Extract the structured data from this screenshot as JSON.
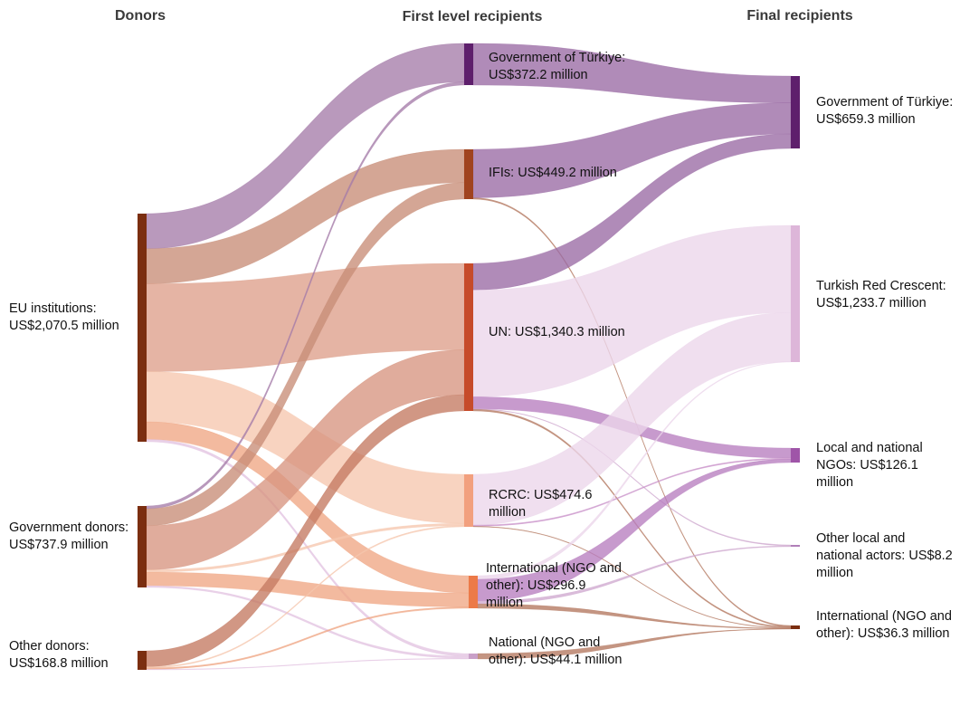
{
  "chart_data": {
    "type": "sankey",
    "unit": "US$ million",
    "columns": [
      "Donors",
      "First level recipients",
      "Final recipients"
    ],
    "nodes": [
      {
        "id": "eu",
        "column": 0,
        "label": [
          "EU institutions:",
          "US$2,070.5 million"
        ],
        "value": 2070.5,
        "color": "#7b2e10"
      },
      {
        "id": "gov",
        "column": 0,
        "label": [
          "Government donors:",
          "US$737.9 million"
        ],
        "value": 737.9,
        "color": "#7b2e10"
      },
      {
        "id": "other",
        "column": 0,
        "label": [
          "Other donors:",
          "US$168.8 million"
        ],
        "value": 168.8,
        "color": "#7b2e10"
      },
      {
        "id": "fl_tur",
        "column": 1,
        "label": [
          "Government of Türkiye:",
          "US$372.2 million"
        ],
        "value": 372.2,
        "color": "#5e1f6c"
      },
      {
        "id": "fl_ifi",
        "column": 1,
        "label": [
          "IFIs: US$449.2 million"
        ],
        "value": 449.2,
        "color": "#a0431f"
      },
      {
        "id": "fl_un",
        "column": 1,
        "label": [
          "UN: US$1,340.3 million"
        ],
        "value": 1340.3,
        "color": "#c64b2a"
      },
      {
        "id": "fl_rcrc",
        "column": 1,
        "label": [
          "RCRC: US$474.6",
          "million"
        ],
        "value": 474.6,
        "color": "#f2a07e"
      },
      {
        "id": "fl_intl",
        "column": 1,
        "label": [
          "International (NGO and",
          "other): US$296.9",
          "million"
        ],
        "value": 296.9,
        "color": "#ec7a48"
      },
      {
        "id": "fl_nat",
        "column": 1,
        "label": [
          "National (NGO and",
          "other): US$44.1 million"
        ],
        "value": 44.1,
        "color": "#c9a0c8"
      },
      {
        "id": "fin_tur",
        "column": 2,
        "label": [
          "Government of Türkiye:",
          "US$659.3 million"
        ],
        "value": 659.3,
        "color": "#5e1f6c"
      },
      {
        "id": "fin_trc",
        "column": 2,
        "label": [
          "Turkish Red Crescent:",
          "US$1,233.7 million"
        ],
        "value": 1233.7,
        "color": "#ddb6d9"
      },
      {
        "id": "fin_lngo",
        "column": 2,
        "label": [
          "Local and national",
          "NGOs: US$126.1",
          "million"
        ],
        "value": 126.1,
        "color": "#9f55a8"
      },
      {
        "id": "fin_olna",
        "column": 2,
        "label": [
          "Other local and",
          "national actors: US$8.2",
          "million"
        ],
        "value": 8.2,
        "color": "#b07fb8"
      },
      {
        "id": "fin_intl",
        "column": 2,
        "label": [
          "International (NGO and",
          "other): US$36.3 million"
        ],
        "value": 36.3,
        "color": "#7b2e10"
      }
    ],
    "links": [
      {
        "source": "eu",
        "target": "fl_tur",
        "value": 300,
        "color": "#a57ca9"
      },
      {
        "source": "eu",
        "target": "fl_ifi",
        "value": 300,
        "color": "#c88d77"
      },
      {
        "source": "eu",
        "target": "fl_un",
        "value": 750,
        "color": "#de9f8a"
      },
      {
        "source": "eu",
        "target": "fl_rcrc",
        "value": 430,
        "color": "#f6c7ae"
      },
      {
        "source": "eu",
        "target": "fl_intl",
        "value": 150,
        "color": "#f0a684"
      },
      {
        "source": "eu",
        "target": "fl_nat",
        "value": 20,
        "color": "#e3c4e2"
      },
      {
        "source": "gov",
        "target": "fl_tur",
        "value": 25,
        "color": "#a57ca9"
      },
      {
        "source": "gov",
        "target": "fl_ifi",
        "value": 150,
        "color": "#c88d77"
      },
      {
        "source": "gov",
        "target": "fl_un",
        "value": 390,
        "color": "#d79580"
      },
      {
        "source": "gov",
        "target": "fl_rcrc",
        "value": 20,
        "color": "#f6c7ae"
      },
      {
        "source": "gov",
        "target": "fl_intl",
        "value": 120,
        "color": "#f0a684"
      },
      {
        "source": "gov",
        "target": "fl_nat",
        "value": 15,
        "color": "#e3c4e2"
      },
      {
        "source": "other",
        "target": "fl_un",
        "value": 140,
        "color": "#c47a62"
      },
      {
        "source": "other",
        "target": "fl_rcrc",
        "value": 10,
        "color": "#f6c7ae"
      },
      {
        "source": "other",
        "target": "fl_intl",
        "value": 12,
        "color": "#f0a684"
      },
      {
        "source": "other",
        "target": "fl_nat",
        "value": 5,
        "color": "#e3c4e2"
      },
      {
        "source": "fl_tur",
        "target": "fin_tur",
        "value": 370,
        "color": "#9a6aa4"
      },
      {
        "source": "fl_ifi",
        "target": "fin_tur",
        "value": 430,
        "color": "#9a6aa4"
      },
      {
        "source": "fl_ifi",
        "target": "fin_intl",
        "value": 12,
        "color": "#b3775f"
      },
      {
        "source": "fl_un",
        "target": "fin_tur",
        "value": 200,
        "color": "#9a6aa4"
      },
      {
        "source": "fl_un",
        "target": "fin_trc",
        "value": 800,
        "color": "#ecd6eb"
      },
      {
        "source": "fl_un",
        "target": "fin_lngo",
        "value": 90,
        "color": "#b77dbf"
      },
      {
        "source": "fl_un",
        "target": "fin_olna",
        "value": 4,
        "color": "#d0a9d0"
      },
      {
        "source": "fl_un",
        "target": "fin_intl",
        "value": 12,
        "color": "#b3775f"
      },
      {
        "source": "fl_rcrc",
        "target": "fin_trc",
        "value": 450,
        "color": "#ecd6eb"
      },
      {
        "source": "fl_rcrc",
        "target": "fin_lngo",
        "value": 10,
        "color": "#c991c9"
      },
      {
        "source": "fl_rcrc",
        "target": "fin_intl",
        "value": 5,
        "color": "#b3775f"
      },
      {
        "source": "fl_intl",
        "target": "fin_trc",
        "value": 5,
        "color": "#ecd6eb"
      },
      {
        "source": "fl_intl",
        "target": "fin_lngo",
        "value": 30,
        "color": "#b77dbf"
      },
      {
        "source": "fl_intl",
        "target": "fin_olna",
        "value": 4,
        "color": "#d0a9d0"
      },
      {
        "source": "fl_intl",
        "target": "fin_intl",
        "value": 6,
        "color": "#b3775f"
      },
      {
        "source": "fl_nat",
        "target": "fin_intl",
        "value": 3,
        "color": "#b3775f"
      }
    ]
  }
}
